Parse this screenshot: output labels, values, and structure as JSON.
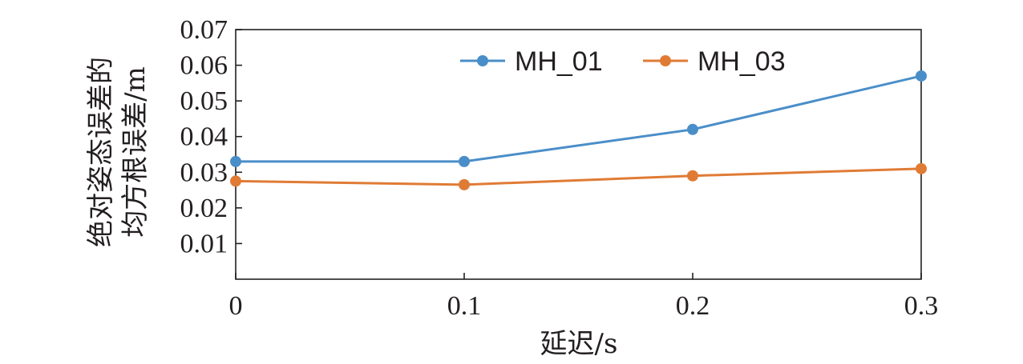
{
  "chart_data": {
    "type": "line",
    "title": "",
    "xlabel": "延迟/s",
    "ylabel_lines": [
      "绝对姿态误差的",
      "均方根误差/m"
    ],
    "x": [
      0,
      0.1,
      0.2,
      0.3
    ],
    "x_ticks": [
      0,
      0.1,
      0.2,
      0.3
    ],
    "x_tick_labels": [
      "0",
      "0.1",
      "0.2",
      "0.3"
    ],
    "xlim": [
      0,
      0.3
    ],
    "y_ticks": [
      0.01,
      0.02,
      0.03,
      0.04,
      0.05,
      0.06,
      0.07
    ],
    "y_tick_labels": [
      "0.01",
      "0.02",
      "0.03",
      "0.04",
      "0.05",
      "0.06",
      "0.07"
    ],
    "ylim": [
      0,
      0.07
    ],
    "grid": false,
    "legend": "top-center",
    "series": [
      {
        "name": "MH_01",
        "color": "#4a8ec9",
        "values": [
          0.033,
          0.033,
          0.042,
          0.057
        ]
      },
      {
        "name": "MH_03",
        "color": "#e07b35",
        "values": [
          0.0275,
          0.0265,
          0.029,
          0.031
        ]
      }
    ]
  }
}
